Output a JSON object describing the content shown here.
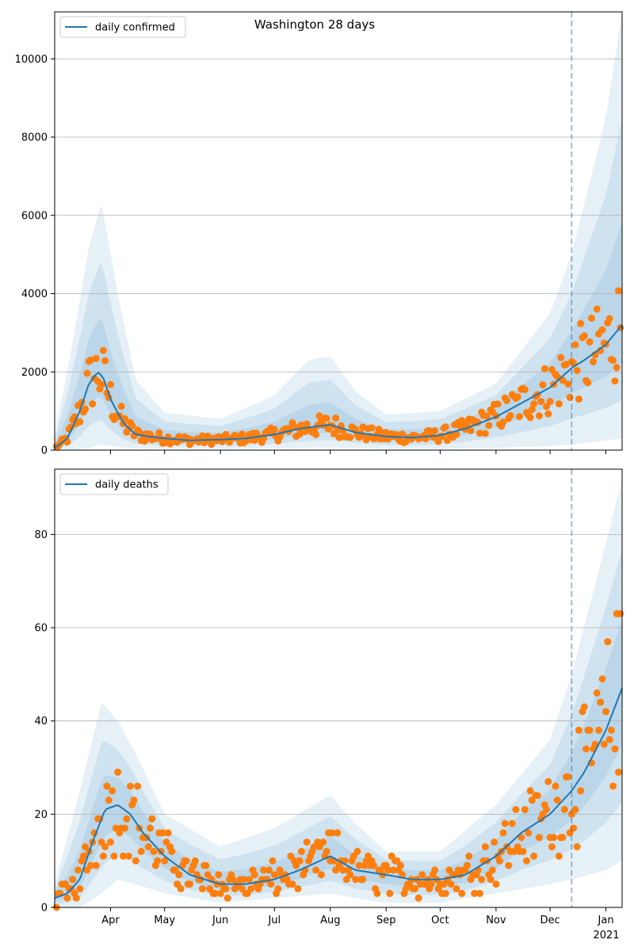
{
  "figure": {
    "title": "Washington 28 days"
  },
  "colors": {
    "line": "#1f77b4",
    "points": "#ff7f0e",
    "band": "#1f77b4",
    "grid": "#b0b0b0"
  },
  "chart_data": [
    {
      "type": "line",
      "name": "confirmed",
      "legend": "daily confirmed",
      "legend_position": "top-left",
      "grid": "horizontal",
      "x_range": [
        "2020-03-01",
        "2021-01-10"
      ],
      "ylim": [
        0,
        11200
      ],
      "yticks": [
        0,
        2000,
        4000,
        6000,
        8000,
        10000
      ],
      "xticks_shown": false,
      "forecast_start": "2020-12-13",
      "series": [
        {
          "name": "daily confirmed",
          "x": [
            "2020-03-01",
            "2020-03-08",
            "2020-03-15",
            "2020-03-20",
            "2020-03-25",
            "2020-03-28",
            "2020-04-01",
            "2020-04-08",
            "2020-04-15",
            "2020-04-22",
            "2020-05-01",
            "2020-05-15",
            "2020-06-01",
            "2020-06-15",
            "2020-07-01",
            "2020-07-15",
            "2020-08-01",
            "2020-08-15",
            "2020-09-01",
            "2020-09-15",
            "2020-10-01",
            "2020-10-15",
            "2020-11-01",
            "2020-11-15",
            "2020-12-01",
            "2020-12-13",
            "2020-12-20",
            "2021-01-01",
            "2021-01-10"
          ],
          "values": [
            50,
            300,
            1000,
            1700,
            2000,
            1850,
            1300,
            700,
            400,
            350,
            300,
            250,
            270,
            300,
            400,
            550,
            650,
            450,
            350,
            320,
            380,
            550,
            850,
            1200,
            1600,
            2100,
            2300,
            2700,
            3200
          ]
        }
      ],
      "bands": {
        "x": [
          "2020-03-01",
          "2020-03-10",
          "2020-03-20",
          "2020-03-27",
          "2020-04-05",
          "2020-04-15",
          "2020-05-01",
          "2020-06-01",
          "2020-07-01",
          "2020-07-20",
          "2020-08-01",
          "2020-08-15",
          "2020-09-01",
          "2020-10-01",
          "2020-11-01",
          "2020-12-01",
          "2020-12-13",
          "2021-01-01",
          "2021-01-10"
        ],
        "outer": {
          "lower": [
            0,
            0,
            50,
            150,
            80,
            40,
            30,
            30,
            40,
            60,
            70,
            50,
            30,
            30,
            60,
            100,
            150,
            250,
            300
          ],
          "upper": [
            400,
            2500,
            5200,
            6300,
            4000,
            1800,
            950,
            800,
            1400,
            2300,
            2400,
            1500,
            900,
            1000,
            1700,
            3500,
            5000,
            8500,
            11200
          ]
        }
      }
    },
    {
      "type": "line",
      "name": "deaths",
      "legend": "daily deaths",
      "legend_position": "top-left",
      "grid": "horizontal",
      "x_range": [
        "2020-03-01",
        "2021-01-10"
      ],
      "ylim": [
        0,
        94
      ],
      "yticks": [
        0,
        20,
        40,
        60,
        80
      ],
      "xticks": [
        "Apr",
        "May",
        "Jun",
        "Jul",
        "Aug",
        "Sep",
        "Oct",
        "Nov",
        "Dec",
        "Jan"
      ],
      "xtick_dates": [
        "2020-04-01",
        "2020-05-01",
        "2020-06-01",
        "2020-07-01",
        "2020-08-01",
        "2020-09-01",
        "2020-10-01",
        "2020-11-01",
        "2020-12-01",
        "2021-01-01"
      ],
      "year_label": "2021",
      "forecast_start": "2020-12-13",
      "series": [
        {
          "name": "daily deaths",
          "x": [
            "2020-03-01",
            "2020-03-08",
            "2020-03-15",
            "2020-03-22",
            "2020-03-29",
            "2020-04-05",
            "2020-04-12",
            "2020-04-19",
            "2020-05-01",
            "2020-05-15",
            "2020-06-01",
            "2020-06-15",
            "2020-07-01",
            "2020-07-15",
            "2020-08-01",
            "2020-08-15",
            "2020-09-01",
            "2020-09-15",
            "2020-10-01",
            "2020-10-15",
            "2020-11-01",
            "2020-11-15",
            "2020-12-01",
            "2020-12-13",
            "2020-12-20",
            "2021-01-01",
            "2021-01-10"
          ],
          "values": [
            2,
            3,
            6,
            14,
            21,
            22,
            20,
            16,
            11,
            7,
            5,
            5,
            6,
            8,
            11,
            8,
            7,
            6,
            6,
            7,
            11,
            16,
            20,
            25,
            29,
            38,
            47
          ]
        }
      ],
      "bands": {
        "x": [
          "2020-03-01",
          "2020-03-15",
          "2020-03-27",
          "2020-04-05",
          "2020-04-15",
          "2020-05-01",
          "2020-06-01",
          "2020-07-01",
          "2020-08-01",
          "2020-08-15",
          "2020-09-01",
          "2020-10-01",
          "2020-11-01",
          "2020-12-01",
          "2020-12-13",
          "2021-01-01",
          "2021-01-10"
        ],
        "outer": {
          "lower": [
            0,
            0,
            3,
            6,
            5,
            3,
            1,
            2,
            3,
            2,
            1,
            1,
            3,
            5,
            6,
            8,
            10
          ],
          "upper": [
            5,
            25,
            44,
            40,
            33,
            20,
            13,
            17,
            24,
            18,
            12,
            12,
            22,
            36,
            50,
            78,
            92
          ]
        }
      }
    }
  ]
}
